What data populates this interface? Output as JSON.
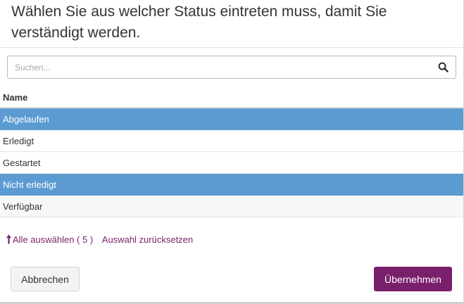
{
  "dialog": {
    "title_line1": "Wählen Sie aus welcher Status eintreten muss, damit Sie",
    "title_line2": "verständigt werden."
  },
  "search": {
    "placeholder": "Suchen...",
    "value": "",
    "icon": "search-icon"
  },
  "table": {
    "column_header": "Name",
    "rows": [
      {
        "label": "Abgelaufen",
        "selected": true
      },
      {
        "label": "Erledigt",
        "selected": false
      },
      {
        "label": "Gestartet",
        "selected": false
      },
      {
        "label": "Nicht erledigt",
        "selected": true
      },
      {
        "label": "Verfügbar",
        "selected": false
      }
    ]
  },
  "selection": {
    "icon": "arrow-up-icon",
    "select_all_label": "Alle auswählen ( 5 )",
    "reset_label": "Auswahl zurücksetzen"
  },
  "buttons": {
    "cancel_label": "Abbrechen",
    "apply_label": "Übernehmen"
  },
  "colors": {
    "accent": "#7a1f6c",
    "selected_row": "#5b9bd1",
    "link": "#7b1f6b"
  }
}
